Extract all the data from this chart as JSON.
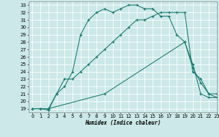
{
  "xlabel": "Humidex (Indice chaleur)",
  "xlim": [
    -0.5,
    23
  ],
  "ylim": [
    18.5,
    33.5
  ],
  "yticks": [
    19,
    20,
    21,
    22,
    23,
    24,
    25,
    26,
    27,
    28,
    29,
    30,
    31,
    32,
    33
  ],
  "xticks": [
    0,
    1,
    2,
    3,
    4,
    5,
    6,
    7,
    8,
    9,
    10,
    11,
    12,
    13,
    14,
    15,
    16,
    17,
    18,
    19,
    20,
    21,
    22,
    23
  ],
  "bg_color": "#cce8e8",
  "line_color": "#1a7a6e",
  "grid_color": "#ffffff",
  "line1_x": [
    0,
    1,
    2,
    3,
    4,
    5,
    6,
    7,
    8,
    9,
    10,
    11,
    12,
    13,
    14,
    15,
    16,
    17,
    18,
    19,
    20,
    21,
    22,
    23
  ],
  "line1_y": [
    19,
    19,
    19,
    21,
    22,
    24,
    29,
    31,
    32,
    32.5,
    32,
    32.5,
    33,
    33,
    32.5,
    32.5,
    31.5,
    31.5,
    29,
    28,
    25,
    21,
    20.5,
    20.5
  ],
  "line2_x": [
    0,
    1,
    2,
    3,
    4,
    5,
    6,
    7,
    8,
    9,
    10,
    11,
    12,
    13,
    14,
    15,
    16,
    17,
    18,
    19,
    20,
    21,
    22,
    23
  ],
  "line2_y": [
    19,
    19,
    18.8,
    21,
    23,
    23,
    24,
    25,
    26,
    27,
    28,
    29,
    30,
    31,
    31,
    31.5,
    32,
    32,
    32,
    32,
    24,
    23,
    21,
    21
  ],
  "line3_x": [
    0,
    2,
    9,
    19,
    20,
    21,
    22,
    23
  ],
  "line3_y": [
    19,
    19,
    21,
    28,
    24.5,
    22.5,
    21,
    20.5
  ]
}
